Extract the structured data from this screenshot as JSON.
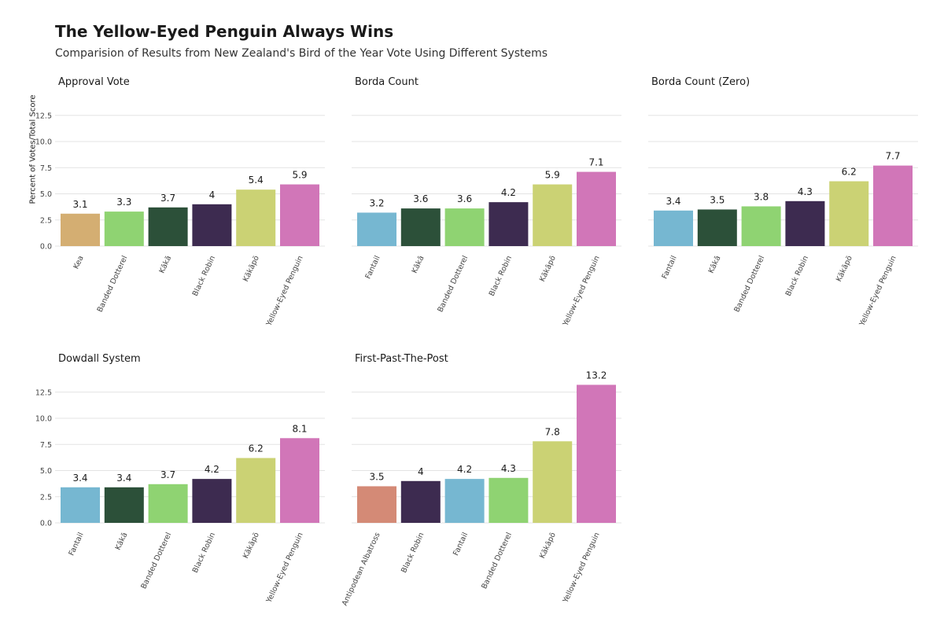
{
  "title": "The Yellow-Eyed Penguin Always Wins",
  "subtitle": "Comparision of Results from New Zealand's Bird of the Year Vote Using Different Systems",
  "ylabel": "Percent of Votes/Total Score",
  "colors": {
    "Kea": "#d4ae72",
    "Banded Dotterel": "#8fd372",
    "Kākā": "#2c5039",
    "Black Robin": "#3d2b50",
    "Kākāpō": "#cbd274",
    "Yellow-Eyed Penguin": "#d176b8",
    "Fantail": "#76b7d1",
    "Antipodean Albatross": "#d48a76"
  },
  "chart_data": [
    {
      "type": "bar",
      "title": "Approval Vote",
      "categories": [
        "Kea",
        "Banded Dotterel",
        "Kākā",
        "Black Robin",
        "Kākāpō",
        "Yellow-Eyed Penguin"
      ],
      "values": [
        3.1,
        3.3,
        3.7,
        4,
        5.4,
        5.9
      ],
      "ylim": [
        0,
        13.2
      ],
      "yticks": [
        "0.0",
        "2.5",
        "5.0",
        "7.5",
        "10.0",
        "12.5"
      ],
      "show_yticks": true
    },
    {
      "type": "bar",
      "title": "Borda Count",
      "categories": [
        "Fantail",
        "Kākā",
        "Banded Dotterel",
        "Black Robin",
        "Kākāpō",
        "Yellow-Eyed Penguin"
      ],
      "values": [
        3.2,
        3.6,
        3.6,
        4.2,
        5.9,
        7.1
      ],
      "ylim": [
        0,
        13.2
      ],
      "show_yticks": false
    },
    {
      "type": "bar",
      "title": "Borda Count (Zero)",
      "categories": [
        "Fantail",
        "Kākā",
        "Banded Dotterel",
        "Black Robin",
        "Kākāpō",
        "Yellow-Eyed Penguin"
      ],
      "values": [
        3.4,
        3.5,
        3.8,
        4.3,
        6.2,
        7.7
      ],
      "ylim": [
        0,
        13.2
      ],
      "show_yticks": false
    },
    {
      "type": "bar",
      "title": "Dowdall System",
      "categories": [
        "Fantail",
        "Kākā",
        "Banded Dotterel",
        "Black Robin",
        "Kākāpō",
        "Yellow-Eyed Penguin"
      ],
      "values": [
        3.4,
        3.4,
        3.7,
        4.2,
        6.2,
        8.1
      ],
      "ylim": [
        0,
        13.2
      ],
      "yticks": [
        "0.0",
        "2.5",
        "5.0",
        "7.5",
        "10.0",
        "12.5"
      ],
      "show_yticks": true
    },
    {
      "type": "bar",
      "title": "First-Past-The-Post",
      "categories": [
        "Antipodean Albatross",
        "Black Robin",
        "Fantail",
        "Banded Dotterel",
        "Kākāpō",
        "Yellow-Eyed Penguin"
      ],
      "values": [
        3.5,
        4,
        4.2,
        4.3,
        7.8,
        13.2
      ],
      "ylim": [
        0,
        13.2
      ],
      "show_yticks": false
    }
  ]
}
